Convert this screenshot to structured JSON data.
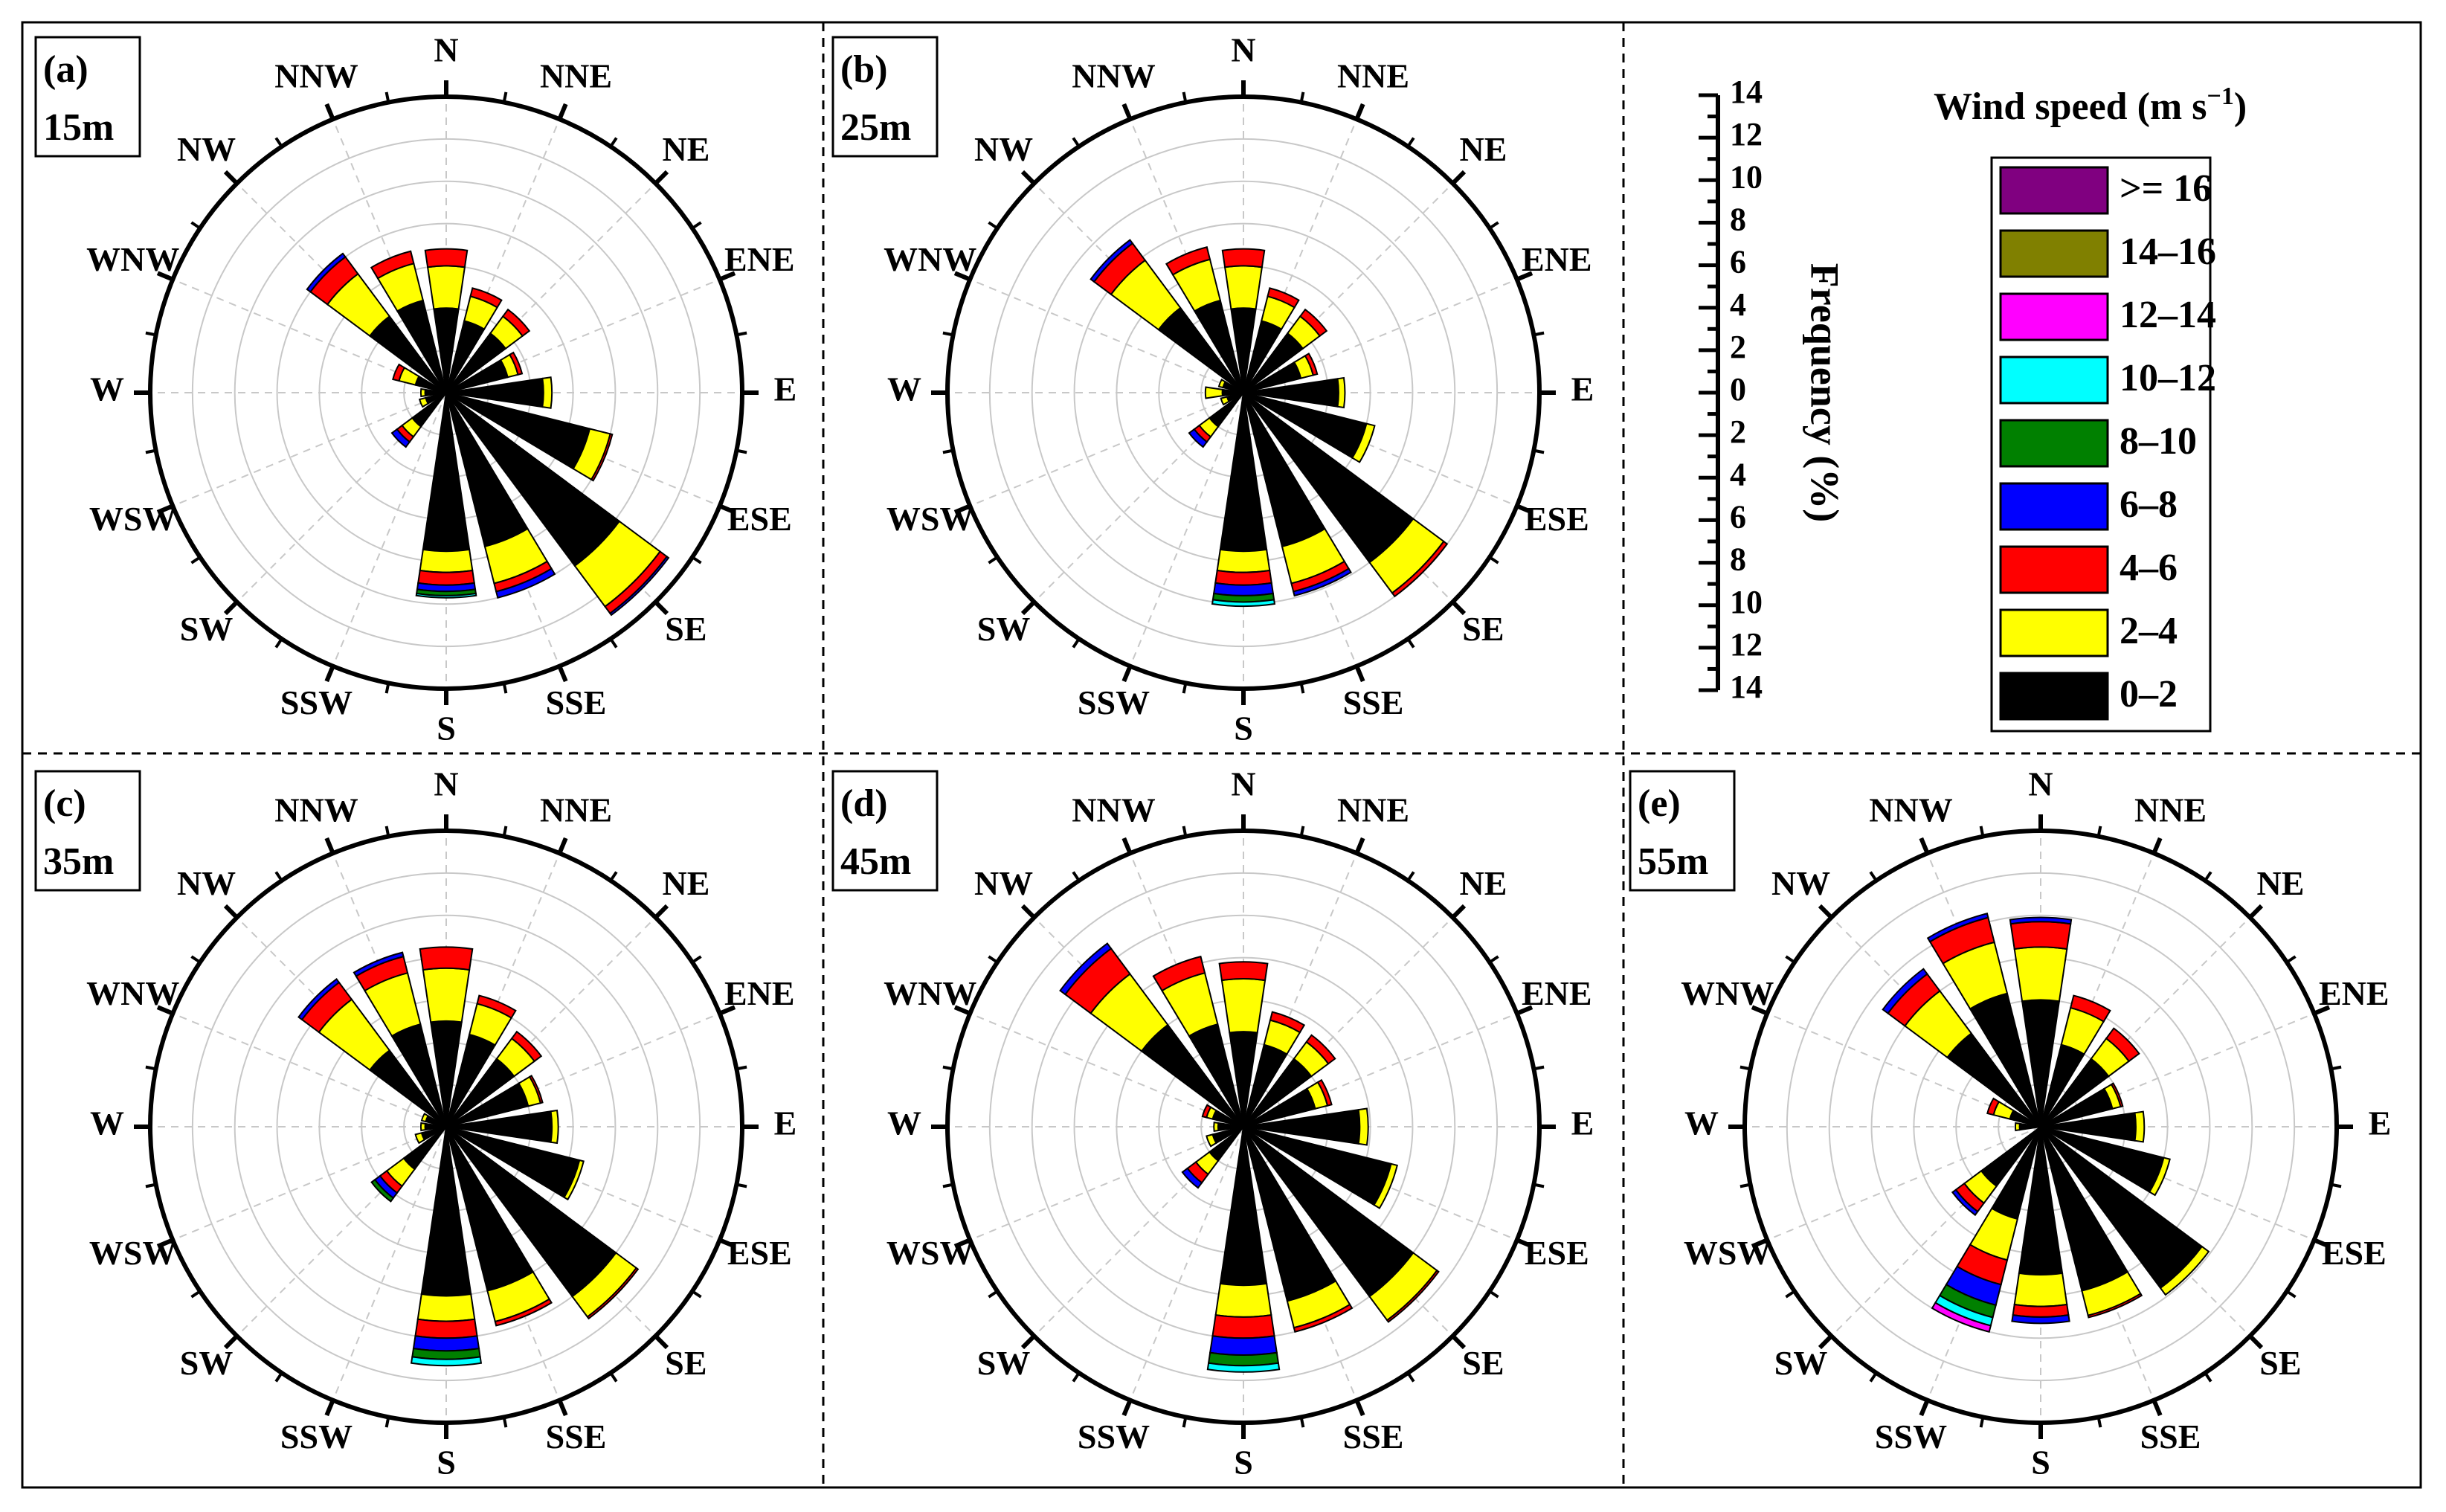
{
  "figure": {
    "directions": [
      "N",
      "NNE",
      "NE",
      "ENE",
      "E",
      "ESE",
      "SE",
      "SSE",
      "S",
      "SSW",
      "SW",
      "WSW",
      "W",
      "WNW",
      "NW",
      "NNW"
    ]
  },
  "legend": {
    "title_main": "Wind speed (m s",
    "title_exp": "−1",
    "title_close": ")",
    "items": [
      {
        "label": ">= 16",
        "color": "#800080"
      },
      {
        "label": "14–16",
        "color": "#808000"
      },
      {
        "label": "12–14",
        "color": "#ff00ff"
      },
      {
        "label": "10–12",
        "color": "#00ffff"
      },
      {
        "label": "8–10",
        "color": "#008000"
      },
      {
        "label": "6–8",
        "color": "#0000ff"
      },
      {
        "label": "4–6",
        "color": "#ff0000"
      },
      {
        "label": "2–4",
        "color": "#ffff00"
      },
      {
        "label": "0–2",
        "color": "#000000"
      }
    ]
  },
  "freq_axis": {
    "label": "Frequency (%)",
    "ticks": [
      "14",
      "12",
      "10",
      "8",
      "6",
      "4",
      "2",
      "0",
      "2",
      "4",
      "6",
      "8",
      "10",
      "12",
      "14"
    ]
  },
  "chart_data": [
    {
      "type": "wind-rose",
      "panel": "(a)",
      "height": "15m",
      "rmax": 14,
      "bins": [
        "0–2",
        "2–4",
        "4–6",
        "6–8",
        "8–10",
        "10–12",
        "12–14",
        "14–16",
        ">= 16"
      ],
      "sectors": [
        [
          4.0,
          2.0,
          0.8,
          0,
          0,
          0,
          0,
          0,
          0
        ],
        [
          3.5,
          1.2,
          0.4,
          0,
          0,
          0,
          0,
          0,
          0
        ],
        [
          3.5,
          1.0,
          0.4,
          0,
          0,
          0,
          0,
          0,
          0
        ],
        [
          3.0,
          0.5,
          0.2,
          0,
          0,
          0,
          0,
          0,
          0
        ],
        [
          4.6,
          0.4,
          0,
          0,
          0,
          0,
          0,
          0,
          0
        ],
        [
          7.0,
          1.0,
          0.1,
          0,
          0,
          0,
          0,
          0,
          0
        ],
        [
          10.2,
          2.4,
          0.4,
          0.1,
          0,
          0,
          0,
          0,
          0
        ],
        [
          7.5,
          1.8,
          0.4,
          0.3,
          0,
          0,
          0,
          0,
          0
        ],
        [
          7.5,
          1.0,
          0.6,
          0.3,
          0.2,
          0.1,
          0,
          0,
          0
        ],
        [
          0,
          0,
          0,
          0,
          0,
          0,
          0,
          0,
          0
        ],
        [
          2.0,
          0.6,
          0.3,
          0.3,
          0,
          0,
          0,
          0,
          0
        ],
        [
          1.0,
          0.3,
          0,
          0,
          0,
          0,
          0,
          0,
          0
        ],
        [
          1.0,
          0.2,
          0,
          0,
          0,
          0,
          0,
          0,
          0
        ],
        [
          1.5,
          0.8,
          0.3,
          0,
          0,
          0,
          0,
          0,
          0
        ],
        [
          4.5,
          2.5,
          1.0,
          0.2,
          0,
          0,
          0,
          0,
          0
        ],
        [
          4.5,
          1.8,
          0.6,
          0,
          0,
          0,
          0,
          0,
          0
        ]
      ]
    },
    {
      "type": "wind-rose",
      "panel": "(b)",
      "height": "25m",
      "rmax": 14,
      "bins": [
        "0–2",
        "2–4",
        "4–6",
        "6–8",
        "8–10",
        "10–12",
        "12–14",
        "14–16",
        ">= 16"
      ],
      "sectors": [
        [
          4.0,
          2.0,
          0.8,
          0,
          0,
          0,
          0,
          0,
          0
        ],
        [
          3.5,
          1.2,
          0.4,
          0,
          0,
          0,
          0,
          0,
          0
        ],
        [
          3.5,
          1.0,
          0.4,
          0,
          0,
          0,
          0,
          0,
          0
        ],
        [
          2.8,
          0.6,
          0.2,
          0,
          0,
          0,
          0,
          0,
          0
        ],
        [
          4.5,
          0.3,
          0,
          0,
          0,
          0,
          0,
          0,
          0
        ],
        [
          6.0,
          0.4,
          0,
          0,
          0,
          0,
          0,
          0,
          0
        ],
        [
          10.0,
          1.8,
          0.2,
          0,
          0,
          0,
          0,
          0,
          0
        ],
        [
          7.5,
          1.8,
          0.4,
          0.2,
          0,
          0,
          0,
          0,
          0
        ],
        [
          7.5,
          1.0,
          0.6,
          0.5,
          0.3,
          0.2,
          0,
          0,
          0
        ],
        [
          0,
          0,
          0,
          0,
          0,
          0,
          0,
          0,
          0
        ],
        [
          2.0,
          0.6,
          0.3,
          0.3,
          0,
          0,
          0,
          0,
          0
        ],
        [
          0.8,
          0.3,
          0,
          0,
          0,
          0,
          0,
          0,
          0
        ],
        [
          1.0,
          0.8,
          0,
          0,
          0,
          0,
          0,
          0,
          0
        ],
        [
          1.0,
          0.2,
          0,
          0,
          0,
          0,
          0,
          0,
          0
        ],
        [
          5.0,
          2.8,
          1.0,
          0.2,
          0,
          0,
          0,
          0,
          0
        ],
        [
          4.5,
          2.0,
          0.6,
          0,
          0,
          0,
          0,
          0,
          0
        ]
      ]
    },
    {
      "type": "wind-rose",
      "panel": "(c)",
      "height": "35m",
      "rmax": 14,
      "bins": [
        "0–2",
        "2–4",
        "4–6",
        "6–8",
        "8–10",
        "10–12",
        "12–14",
        "14–16",
        ">= 16"
      ],
      "sectors": [
        [
          5.0,
          2.5,
          1.0,
          0,
          0,
          0,
          0,
          0,
          0
        ],
        [
          4.5,
          1.5,
          0.4,
          0,
          0,
          0,
          0,
          0,
          0
        ],
        [
          4.0,
          1.2,
          0.4,
          0,
          0,
          0,
          0,
          0,
          0
        ],
        [
          4.0,
          0.6,
          0.1,
          0,
          0,
          0,
          0,
          0,
          0
        ],
        [
          5.0,
          0.3,
          0,
          0,
          0,
          0,
          0,
          0,
          0
        ],
        [
          6.5,
          0.2,
          0,
          0,
          0,
          0,
          0,
          0,
          0
        ],
        [
          10.0,
          1.2,
          0.1,
          0,
          0,
          0,
          0,
          0,
          0
        ],
        [
          8.0,
          1.5,
          0.2,
          0,
          0,
          0,
          0,
          0,
          0
        ],
        [
          8.0,
          1.2,
          0.8,
          0.6,
          0.4,
          0.3,
          0,
          0,
          0
        ],
        [
          0,
          0,
          0,
          0,
          0,
          0,
          0,
          0,
          0
        ],
        [
          2.5,
          1.0,
          0.4,
          0.3,
          0.2,
          0,
          0,
          0,
          0
        ],
        [
          1.2,
          0.3,
          0,
          0,
          0,
          0,
          0,
          0,
          0
        ],
        [
          1.0,
          0.2,
          0,
          0,
          0,
          0,
          0,
          0,
          0
        ],
        [
          1.0,
          0.2,
          0,
          0,
          0,
          0,
          0,
          0,
          0
        ],
        [
          4.5,
          3.0,
          1.0,
          0.2,
          0,
          0,
          0,
          0,
          0
        ],
        [
          5.0,
          2.5,
          0.8,
          0.2,
          0,
          0,
          0,
          0,
          0
        ]
      ]
    },
    {
      "type": "wind-rose",
      "panel": "(d)",
      "height": "45m",
      "rmax": 14,
      "bins": [
        "0–2",
        "2–4",
        "4–6",
        "6–8",
        "8–10",
        "10–12",
        "12–14",
        "14–16",
        ">= 16"
      ],
      "sectors": [
        [
          4.5,
          2.5,
          0.8,
          0,
          0,
          0,
          0,
          0,
          0
        ],
        [
          4.0,
          1.2,
          0.4,
          0,
          0,
          0,
          0,
          0,
          0
        ],
        [
          4.0,
          1.0,
          0.4,
          0,
          0,
          0,
          0,
          0,
          0
        ],
        [
          3.5,
          0.6,
          0.2,
          0,
          0,
          0,
          0,
          0,
          0
        ],
        [
          5.5,
          0.4,
          0,
          0,
          0,
          0,
          0,
          0,
          0
        ],
        [
          7.2,
          0.3,
          0,
          0,
          0,
          0,
          0,
          0,
          0
        ],
        [
          10.0,
          1.4,
          0.1,
          0,
          0,
          0,
          0,
          0,
          0
        ],
        [
          8.5,
          1.3,
          0.2,
          0,
          0,
          0,
          0,
          0,
          0
        ],
        [
          7.5,
          1.5,
          1.0,
          0.8,
          0.5,
          0.3,
          0,
          0,
          0
        ],
        [
          0,
          0,
          0,
          0,
          0,
          0,
          0,
          0,
          0
        ],
        [
          2.0,
          0.8,
          0.5,
          0.3,
          0,
          0,
          0,
          0,
          0
        ],
        [
          1.5,
          0.3,
          0,
          0,
          0,
          0,
          0,
          0,
          0
        ],
        [
          1.2,
          0.2,
          0,
          0,
          0,
          0,
          0,
          0,
          0
        ],
        [
          1.5,
          0.3,
          0.2,
          0,
          0,
          0,
          0,
          0,
          0
        ],
        [
          6.0,
          3.0,
          1.5,
          0.3,
          0,
          0,
          0,
          0,
          0
        ],
        [
          5.0,
          2.5,
          0.8,
          0,
          0,
          0,
          0,
          0,
          0
        ]
      ]
    },
    {
      "type": "wind-rose",
      "panel": "(e)",
      "height": "55m",
      "rmax": 14,
      "bins": [
        "0–2",
        "2–4",
        "4–6",
        "6–8",
        "8–10",
        "10–12",
        "12–14",
        "14–16",
        ">= 16"
      ],
      "sectors": [
        [
          6.0,
          2.5,
          1.2,
          0.2,
          0,
          0,
          0,
          0,
          0
        ],
        [
          4.0,
          1.8,
          0.6,
          0,
          0,
          0,
          0,
          0,
          0
        ],
        [
          4.0,
          1.2,
          0.6,
          0,
          0,
          0,
          0,
          0,
          0
        ],
        [
          3.5,
          0.4,
          0.1,
          0,
          0,
          0,
          0,
          0,
          0
        ],
        [
          4.5,
          0.4,
          0,
          0,
          0,
          0,
          0,
          0,
          0
        ],
        [
          6.0,
          0.3,
          0,
          0,
          0,
          0,
          0,
          0,
          0
        ],
        [
          9.5,
          0.4,
          0,
          0,
          0,
          0,
          0,
          0,
          0
        ],
        [
          8.0,
          1.2,
          0.1,
          0,
          0,
          0,
          0,
          0,
          0
        ],
        [
          7.0,
          1.5,
          0.5,
          0.3,
          0,
          0,
          0,
          0,
          0
        ],
        [
          4.5,
          2.0,
          1.2,
          1.0,
          0.6,
          0.4,
          0.3,
          0,
          0
        ],
        [
          3.5,
          1.0,
          0.5,
          0.2,
          0,
          0,
          0,
          0,
          0
        ],
        [
          0,
          0,
          0,
          0,
          0,
          0,
          0,
          0,
          0
        ],
        [
          1.0,
          0.2,
          0,
          0,
          0,
          0,
          0,
          0,
          0
        ],
        [
          1.5,
          0.8,
          0.3,
          0,
          0,
          0,
          0,
          0,
          0
        ],
        [
          5.5,
          2.5,
          1.0,
          0.3,
          0,
          0,
          0,
          0,
          0
        ],
        [
          6.5,
          2.5,
          1.2,
          0.2,
          0,
          0,
          0,
          0,
          0
        ]
      ]
    }
  ]
}
